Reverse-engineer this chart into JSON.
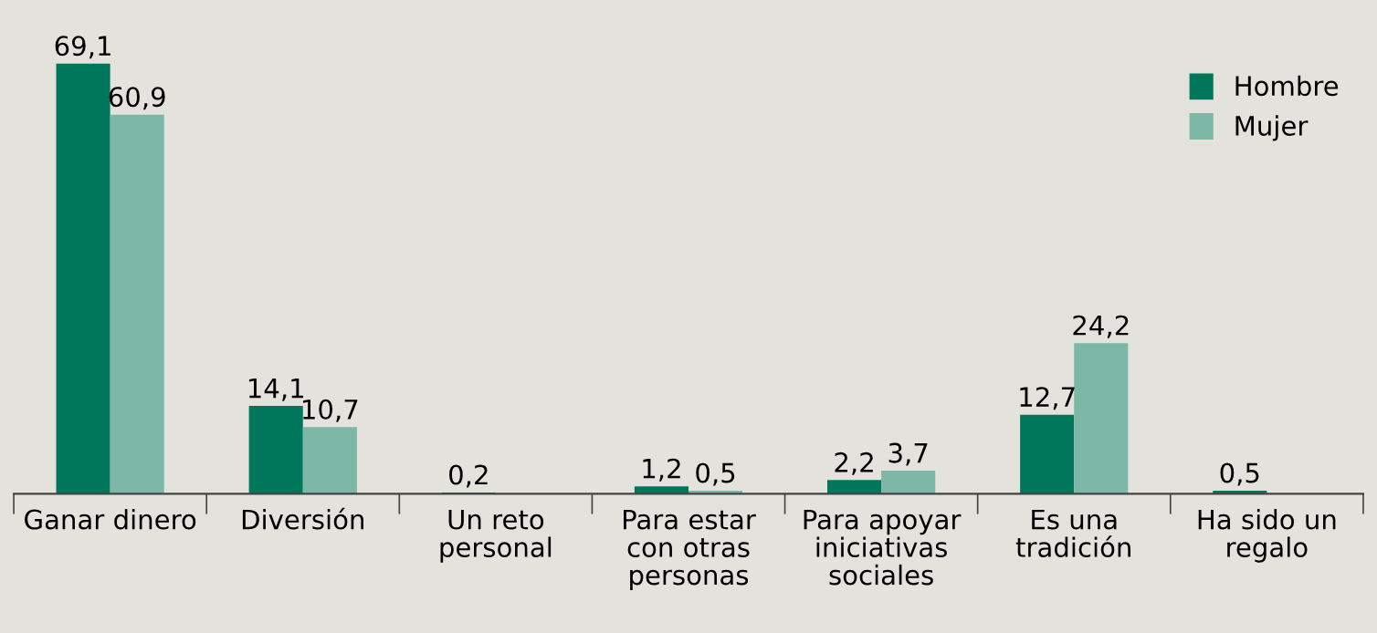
{
  "chart_data": {
    "type": "bar",
    "categories": [
      "Ganar dinero",
      "Diversión",
      "Un reto\npersonal",
      "Para estar\ncon otras\npersonas",
      "Para apoyar\niniciativas\nsociales",
      "Es una\ntradición",
      "Ha sido un\nregalo"
    ],
    "series": [
      {
        "name": "Hombre",
        "color": "#00775a",
        "values": [
          69.1,
          14.1,
          0.2,
          1.2,
          2.2,
          12.7,
          0.5
        ],
        "value_labels": [
          "69,1",
          "14,1",
          "0,2",
          "1,2",
          "2,2",
          "12,7",
          "0,5"
        ]
      },
      {
        "name": "Mujer",
        "color": "#7db7a6",
        "values": [
          60.9,
          10.7,
          null,
          0.5,
          3.7,
          24.2,
          null
        ],
        "value_labels": [
          "60,9",
          "10,7",
          null,
          "0,5",
          "3,7",
          "24,2",
          null
        ]
      }
    ],
    "legend": "top right",
    "grid": false
  }
}
